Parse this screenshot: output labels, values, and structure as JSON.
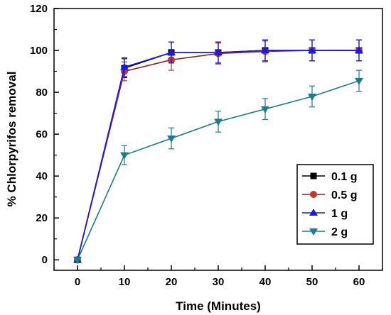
{
  "chart_data": {
    "type": "line",
    "xlabel": "Time (Minutes)",
    "ylabel": "% Chlorpyrifos removal",
    "xlim": [
      -5,
      65
    ],
    "ylim": [
      -5,
      120
    ],
    "x_ticks": [
      0,
      10,
      20,
      30,
      40,
      50,
      60
    ],
    "y_ticks": [
      0,
      20,
      40,
      60,
      80,
      100,
      120
    ],
    "grid": false,
    "legend_position": "bottom-right",
    "x": [
      0,
      10,
      20,
      30,
      40,
      50,
      60
    ],
    "series": [
      {
        "name": "0.1 g",
        "color": "#000000",
        "marker": "square",
        "values": [
          0,
          91.5,
          99,
          99,
          100,
          100,
          100
        ],
        "errors": [
          0,
          4.5,
          5,
          5,
          5,
          5,
          5
        ]
      },
      {
        "name": "0.5 g",
        "color": "#c0392b",
        "line_color": "#8b2a1a",
        "marker": "circle",
        "values": [
          0,
          90,
          95.5,
          98.5,
          99.5,
          100,
          100
        ],
        "errors": [
          0,
          4.5,
          5,
          5,
          5,
          5,
          5
        ]
      },
      {
        "name": "1 g",
        "color": "#1a1ae6",
        "marker": "triangle-up",
        "values": [
          0,
          92,
          99,
          99,
          100,
          100,
          100
        ],
        "errors": [
          0,
          4.5,
          5,
          5,
          5,
          5,
          5
        ]
      },
      {
        "name": "2 g",
        "color": "#1e7b8a",
        "marker": "triangle-down",
        "values": [
          0,
          50,
          58,
          66,
          72,
          78,
          85.5
        ],
        "errors": [
          0,
          4.5,
          5,
          5,
          5,
          5,
          5
        ]
      }
    ]
  }
}
